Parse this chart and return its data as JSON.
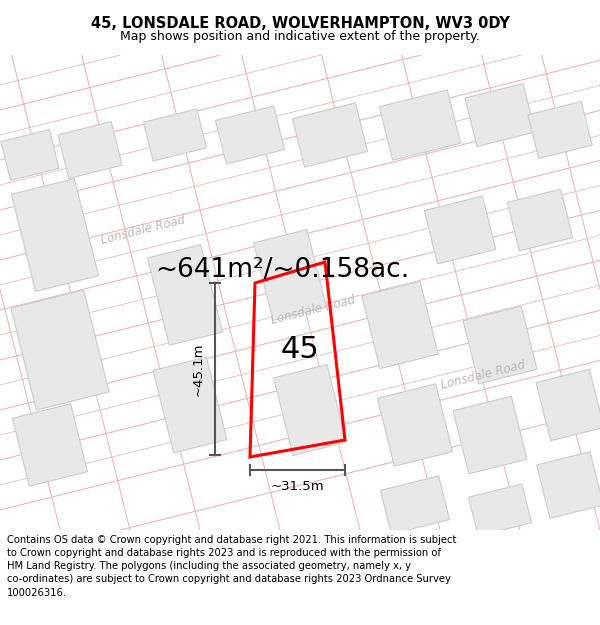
{
  "title": "45, LONSDALE ROAD, WOLVERHAMPTON, WV3 0DY",
  "subtitle": "Map shows position and indicative extent of the property.",
  "footer": "Contains OS data © Crown copyright and database right 2021. This information is subject to Crown copyright and database rights 2023 and is reproduced with the permission of HM Land Registry. The polygons (including the associated geometry, namely x, y co-ordinates) are subject to Crown copyright and database rights 2023 Ordnance Survey 100026316.",
  "area_label": "~641m²/~0.158ac.",
  "property_number": "45",
  "dim_width": "~31.5m",
  "dim_height": "~45.1m",
  "title_fontsize": 10.5,
  "subtitle_fontsize": 9,
  "area_fontsize": 19,
  "footer_fontsize": 7.2,
  "prop_number_fontsize": 22,
  "dim_fontsize": 9.5,
  "road_label_fontsize": 8.5,
  "road_label_color": "#c0b8b8",
  "dim_line_color": "#555555",
  "building_fill": "#e8e8e8",
  "building_edge": "#cccccc",
  "road_line_color": "#e8b0b0",
  "property_poly_color": "#ff0000"
}
